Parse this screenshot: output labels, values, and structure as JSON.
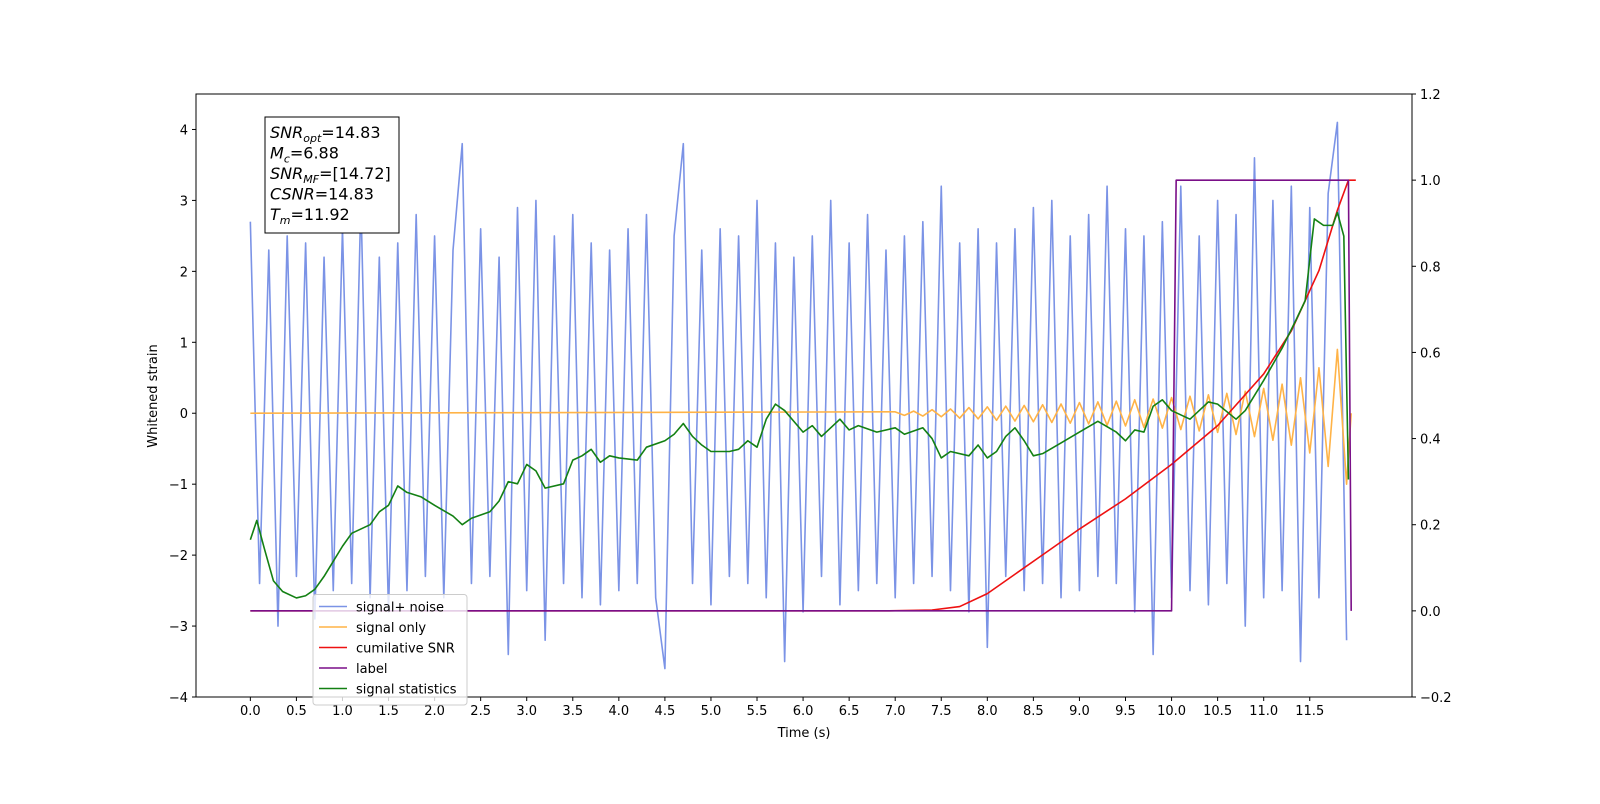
{
  "chart_data": {
    "type": "line",
    "xlabel": "Time (s)",
    "ylabel": "Whitened strain",
    "xlim": [
      -0.59,
      12.61
    ],
    "ylim": [
      -4,
      4.5
    ],
    "y2lim": [
      -0.2,
      1.2
    ],
    "xticks": [
      {
        "value": 0,
        "label": "0.0"
      },
      0.5,
      {
        "value": 1,
        "label": "1.0"
      },
      1.5,
      {
        "value": 2,
        "label": "2.0"
      },
      2.5,
      {
        "value": 3,
        "label": "3.0"
      },
      3.5,
      {
        "value": 4,
        "label": "4.0"
      },
      4.5,
      {
        "value": 5,
        "label": "5.0"
      },
      5.5,
      {
        "value": 6,
        "label": "6.0"
      },
      6.5,
      {
        "value": 7,
        "label": "7.0"
      },
      7.5,
      {
        "value": 8,
        "label": "8.0"
      },
      8.5,
      {
        "value": 9,
        "label": "9.0"
      },
      9.5,
      {
        "value": 10,
        "label": "10.0"
      },
      10.5,
      {
        "value": 11,
        "label": "11.0"
      },
      11.5
    ],
    "yticks": [
      {
        "value": -4,
        "label": "−4"
      },
      {
        "value": -3,
        "label": "−3"
      },
      {
        "value": -2,
        "label": "−2"
      },
      {
        "value": -1,
        "label": "−1"
      },
      0,
      1,
      2,
      3,
      4
    ],
    "y2ticks": [
      {
        "value": -0.2,
        "label": "−0.2"
      },
      {
        "value": 0,
        "label": "0.0"
      },
      0.2,
      0.4,
      0.6,
      0.8,
      {
        "value": 1,
        "label": "1.0"
      },
      1.2
    ],
    "legend": "lower left",
    "annotation": [
      {
        "main": "SNR",
        "sub": "opt",
        "rest": "=14.83"
      },
      {
        "main": "M",
        "sub": "c",
        "rest": "=6.88"
      },
      {
        "main": "SNR",
        "sub": "MF",
        "rest": "=[14.72]"
      },
      {
        "main": "CSNR",
        "sub": null,
        "rest": "=14.83"
      },
      {
        "main": "T",
        "sub": "m",
        "rest": "=11.92"
      }
    ],
    "series": [
      {
        "name": "signal+ noise",
        "color": "#7b93e6",
        "axis": "y",
        "x": [
          0,
          0.1,
          0.2,
          0.3,
          0.4,
          0.5,
          0.6,
          0.7,
          0.8,
          0.9,
          1,
          1.1,
          1.2,
          1.3,
          1.4,
          1.5,
          1.6,
          1.7,
          1.8,
          1.9,
          2,
          2.1,
          2.2,
          2.3,
          2.4,
          2.5,
          2.6,
          2.7,
          2.8,
          2.9,
          3,
          3.1,
          3.2,
          3.3,
          3.4,
          3.5,
          3.6,
          3.7,
          3.8,
          3.9,
          4,
          4.1,
          4.2,
          4.3,
          4.4,
          4.5,
          4.6,
          4.7,
          4.8,
          4.9,
          5,
          5.1,
          5.2,
          5.3,
          5.4,
          5.5,
          5.6,
          5.7,
          5.8,
          5.9,
          6,
          6.1,
          6.2,
          6.3,
          6.4,
          6.5,
          6.6,
          6.7,
          6.8,
          6.9,
          7,
          7.1,
          7.2,
          7.3,
          7.4,
          7.5,
          7.6,
          7.7,
          7.8,
          7.9,
          8,
          8.1,
          8.2,
          8.3,
          8.4,
          8.5,
          8.6,
          8.7,
          8.8,
          8.9,
          9,
          9.1,
          9.2,
          9.3,
          9.4,
          9.5,
          9.6,
          9.7,
          9.8,
          9.9,
          10,
          10.1,
          10.2,
          10.3,
          10.4,
          10.5,
          10.6,
          10.7,
          10.8,
          10.9,
          11,
          11.1,
          11.2,
          11.3,
          11.4,
          11.5,
          11.6,
          11.7,
          11.8,
          11.9
        ],
        "values": [
          2.7,
          -2.4,
          2.3,
          -3.0,
          2.5,
          -2.3,
          2.4,
          -2.9,
          2.2,
          -2.5,
          2.6,
          -2.4,
          3.0,
          -2.6,
          2.2,
          -2.8,
          2.4,
          -2.5,
          2.8,
          -2.3,
          2.5,
          -2.6,
          2.3,
          3.8,
          -2.4,
          2.6,
          -2.3,
          2.2,
          -3.4,
          2.9,
          -2.5,
          3.0,
          -3.2,
          2.5,
          -2.4,
          2.8,
          -2.6,
          2.4,
          -2.7,
          2.3,
          -2.5,
          2.6,
          -2.4,
          2.8,
          -2.6,
          -3.6,
          2.5,
          3.8,
          -2.4,
          2.3,
          -2.7,
          2.6,
          -2.3,
          2.5,
          -2.4,
          3.0,
          -2.6,
          2.4,
          -3.5,
          2.2,
          -2.8,
          2.5,
          -2.3,
          3.0,
          -2.7,
          2.4,
          -2.5,
          2.8,
          -2.4,
          2.3,
          -2.6,
          2.5,
          -2.4,
          2.7,
          -2.3,
          3.2,
          -2.5,
          2.4,
          -2.8,
          2.6,
          -3.3,
          2.4,
          -2.3,
          2.6,
          -2.5,
          2.9,
          -2.4,
          3.0,
          -2.6,
          2.5,
          -2.5,
          2.8,
          -2.3,
          3.2,
          -2.4,
          2.6,
          -2.8,
          2.5,
          -3.4,
          2.7,
          -2.6,
          3.2,
          -2.5,
          2.5,
          -2.7,
          3.0,
          -2.4,
          2.8,
          -3.0,
          3.6,
          -2.6,
          3.0,
          -2.5,
          3.2,
          -3.5,
          2.9,
          -2.6,
          3.1,
          4.1,
          -3.2
        ]
      },
      {
        "name": "signal only",
        "color": "#ffb347",
        "axis": "y",
        "x": [
          0,
          7,
          7.1,
          7.2,
          7.3,
          7.4,
          7.5,
          7.6,
          7.7,
          7.8,
          7.9,
          8,
          8.1,
          8.2,
          8.3,
          8.4,
          8.5,
          8.6,
          8.7,
          8.8,
          8.9,
          9,
          9.1,
          9.2,
          9.3,
          9.4,
          9.5,
          9.6,
          9.7,
          9.8,
          9.9,
          10,
          10.1,
          10.2,
          10.3,
          10.4,
          10.5,
          10.6,
          10.7,
          10.8,
          10.9,
          11,
          11.1,
          11.2,
          11.3,
          11.4,
          11.5,
          11.6,
          11.7,
          11.8,
          11.9,
          11.95
        ],
        "values": [
          0,
          0.02,
          -0.03,
          0.03,
          -0.04,
          0.05,
          -0.05,
          0.06,
          -0.07,
          0.08,
          -0.08,
          0.09,
          -0.1,
          0.1,
          -0.11,
          0.11,
          -0.12,
          0.12,
          -0.13,
          0.13,
          -0.14,
          0.15,
          -0.15,
          0.16,
          -0.17,
          0.17,
          -0.18,
          0.19,
          -0.2,
          0.2,
          -0.21,
          0.22,
          -0.23,
          0.24,
          -0.25,
          0.26,
          -0.27,
          0.28,
          -0.3,
          0.31,
          -0.33,
          0.35,
          -0.38,
          0.41,
          -0.45,
          0.5,
          -0.56,
          0.64,
          -0.75,
          0.9,
          -1.0,
          0
        ]
      },
      {
        "name": "cumilative SNR",
        "color": "#ee1111",
        "axis": "y2",
        "x": [
          0,
          6.9,
          7.4,
          7.7,
          8,
          8.3,
          8.6,
          9,
          9.5,
          10,
          10.5,
          11,
          11.3,
          11.6,
          11.8,
          11.92,
          12
        ],
        "values": [
          0,
          0,
          0.002,
          0.01,
          0.04,
          0.085,
          0.13,
          0.19,
          0.26,
          0.34,
          0.43,
          0.55,
          0.65,
          0.79,
          0.93,
          1.0,
          1.0
        ]
      },
      {
        "name": "label",
        "color": "#7a0f88",
        "axis": "y2",
        "x": [
          0,
          10,
          10.05,
          11.92,
          11.95
        ],
        "values": [
          0,
          0,
          1,
          1,
          0
        ]
      },
      {
        "name": "signal statistics",
        "color": "#138013",
        "axis": "y2",
        "x": [
          0,
          0.07,
          0.15,
          0.25,
          0.35,
          0.5,
          0.6,
          0.7,
          0.8,
          0.9,
          1,
          1.1,
          1.3,
          1.4,
          1.5,
          1.6,
          1.7,
          1.85,
          2,
          2.2,
          2.3,
          2.4,
          2.6,
          2.7,
          2.8,
          2.9,
          3,
          3.1,
          3.2,
          3.4,
          3.5,
          3.6,
          3.7,
          3.8,
          3.9,
          4,
          4.2,
          4.3,
          4.5,
          4.6,
          4.7,
          4.8,
          4.9,
          5,
          5.2,
          5.3,
          5.4,
          5.5,
          5.6,
          5.7,
          5.8,
          5.9,
          6,
          6.1,
          6.2,
          6.4,
          6.5,
          6.6,
          6.8,
          7,
          7.1,
          7.3,
          7.4,
          7.5,
          7.6,
          7.8,
          7.9,
          8,
          8.1,
          8.2,
          8.3,
          8.4,
          8.5,
          8.6,
          8.8,
          9,
          9.2,
          9.4,
          9.5,
          9.6,
          9.7,
          9.8,
          9.9,
          10,
          10.2,
          10.4,
          10.5,
          10.7,
          10.8,
          11,
          11.2,
          11.35,
          11.45,
          11.55,
          11.65,
          11.75,
          11.8,
          11.87,
          11.92
        ],
        "values": [
          0.165,
          0.21,
          0.146,
          0.07,
          0.045,
          0.03,
          0.035,
          0.05,
          0.08,
          0.115,
          0.15,
          0.18,
          0.2,
          0.23,
          0.245,
          0.29,
          0.275,
          0.265,
          0.245,
          0.22,
          0.2,
          0.215,
          0.23,
          0.255,
          0.3,
          0.295,
          0.34,
          0.325,
          0.285,
          0.295,
          0.35,
          0.36,
          0.375,
          0.345,
          0.36,
          0.355,
          0.35,
          0.38,
          0.395,
          0.41,
          0.435,
          0.405,
          0.385,
          0.37,
          0.37,
          0.375,
          0.395,
          0.38,
          0.445,
          0.48,
          0.465,
          0.44,
          0.415,
          0.43,
          0.405,
          0.445,
          0.42,
          0.43,
          0.415,
          0.425,
          0.41,
          0.425,
          0.4,
          0.355,
          0.37,
          0.36,
          0.385,
          0.355,
          0.37,
          0.405,
          0.425,
          0.395,
          0.36,
          0.365,
          0.39,
          0.415,
          0.44,
          0.415,
          0.395,
          0.42,
          0.415,
          0.475,
          0.49,
          0.465,
          0.445,
          0.485,
          0.48,
          0.445,
          0.465,
          0.535,
          0.61,
          0.675,
          0.72,
          0.91,
          0.895,
          0.895,
          0.925,
          0.87,
          0.305
        ]
      }
    ]
  }
}
